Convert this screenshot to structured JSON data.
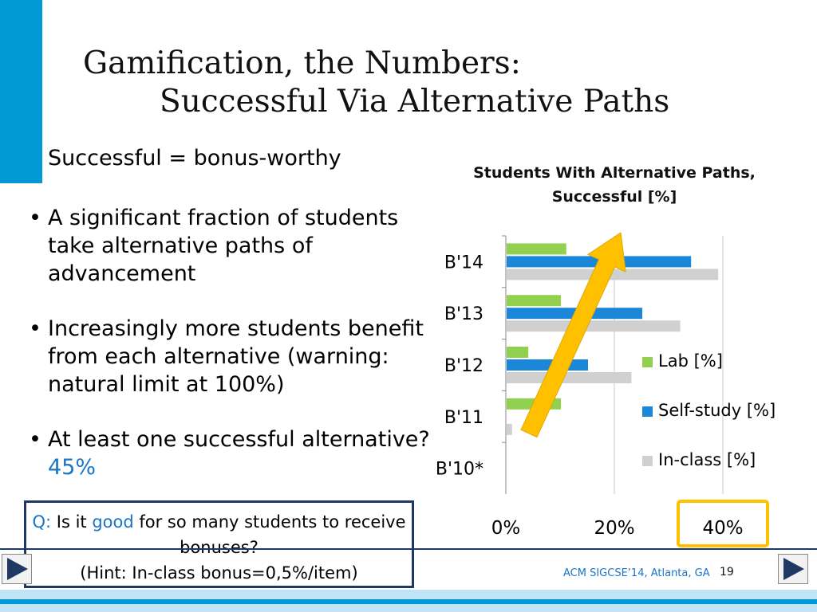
{
  "slide": {
    "title_line1": "Gamification, the Numbers:",
    "title_line2": "Successful Via Alternative Paths",
    "intro": "Successful = bonus-worthy",
    "bullets": [
      {
        "text": "A significant fraction of students take alternative paths of advancement"
      },
      {
        "text": "Increasingly more students benefit from each alternative (warning: natural limit at 100%)"
      },
      {
        "text_before": "At least one successful alternative? ",
        "highlight": "45%"
      }
    ]
  },
  "question_box": {
    "q_label": "Q:",
    "q_text_a": " Is it ",
    "q_good": "good",
    "q_text_b": " for so many students to receive bonuses?",
    "hint": "(Hint: In-class bonus=0,5%/item)"
  },
  "footer": {
    "conference": "ACM SIGCSE’14, Atlanta, GA",
    "page_number": "19"
  },
  "colors": {
    "accent": "#0099d6",
    "lab": "#92d050",
    "self_study": "#1b87d8",
    "in_class": "#d0d0d0",
    "arrow": "#ffc000",
    "highlight_box": "#ffc000",
    "nav_arrow": "#1f3864"
  },
  "nav": {
    "prev_icon": "triangle-left-icon",
    "next_icon": "triangle-right-icon"
  },
  "chart_data": {
    "type": "bar",
    "orientation": "horizontal",
    "title": "Students With Alternative Paths, Successful [%]",
    "categories": [
      "B'14",
      "B'13",
      "B'12",
      "B'11",
      "B'10*"
    ],
    "series": [
      {
        "name": "Lab [%]",
        "values": [
          11,
          10,
          4,
          10,
          0
        ]
      },
      {
        "name": "Self-study [%]",
        "values": [
          34,
          25,
          15,
          0,
          0
        ]
      },
      {
        "name": "In-class [%]",
        "values": [
          39,
          32,
          23,
          1,
          0
        ]
      }
    ],
    "xticks": [
      "0%",
      "20%",
      "40%"
    ],
    "xlim": [
      0,
      40
    ],
    "grid": true,
    "legend": "right",
    "annotations": {
      "trend_arrow": "up",
      "highlighted_tick": "40%"
    }
  }
}
